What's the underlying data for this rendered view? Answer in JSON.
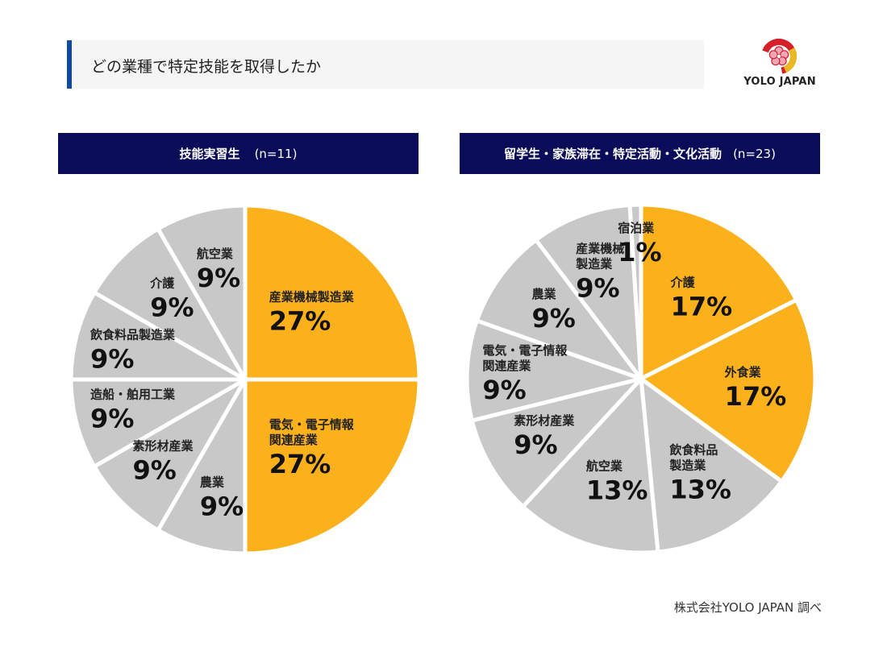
{
  "header": {
    "title": "どの業種で特定技能を取得したか"
  },
  "logo": {
    "text": "YOLO JAPAN"
  },
  "colors": {
    "highlight": "#fbb11c",
    "other": "#c8c8c8",
    "header_bg": "#0a0c5a",
    "accent": "#0e4aa3"
  },
  "chart_data": [
    {
      "type": "pie",
      "title": "技能実習生",
      "n_label": "(n=11)",
      "slices": [
        {
          "name": "産業機械製造業",
          "label_lines": [
            "産業機械製造業"
          ],
          "value_label": "27%",
          "value": 27,
          "highlight": true
        },
        {
          "name": "電気・電子情報関連産業",
          "label_lines": [
            "電気・電子情報",
            "関連産業"
          ],
          "value_label": "27%",
          "value": 27,
          "highlight": true
        },
        {
          "name": "農業",
          "label_lines": [
            "農業"
          ],
          "value_label": "9%",
          "value": 9,
          "highlight": false
        },
        {
          "name": "素形材産業",
          "label_lines": [
            "素形材産業"
          ],
          "value_label": "9%",
          "value": 9,
          "highlight": false
        },
        {
          "name": "造船・舶用工業",
          "label_lines": [
            "造船・舶用工業"
          ],
          "value_label": "9%",
          "value": 9,
          "highlight": false
        },
        {
          "name": "飲食料品製造業",
          "label_lines": [
            "飲食料品製造業"
          ],
          "value_label": "9%",
          "value": 9,
          "highlight": false
        },
        {
          "name": "介護",
          "label_lines": [
            "介護"
          ],
          "value_label": "9%",
          "value": 9,
          "highlight": false
        },
        {
          "name": "航空業",
          "label_lines": [
            "航空業"
          ],
          "value_label": "9%",
          "value": 9,
          "highlight": false
        }
      ]
    },
    {
      "type": "pie",
      "title": "留学生・家族滞在・特定活動・文化活動",
      "n_label": "(n=23)",
      "slices": [
        {
          "name": "介護",
          "label_lines": [
            "介護"
          ],
          "value_label": "17%",
          "value": 17,
          "highlight": true
        },
        {
          "name": "外食業",
          "label_lines": [
            "外食業"
          ],
          "value_label": "17%",
          "value": 17,
          "highlight": true
        },
        {
          "name": "飲食料品製造業",
          "label_lines": [
            "飲食料品",
            "製造業"
          ],
          "value_label": "13%",
          "value": 13,
          "highlight": false
        },
        {
          "name": "航空業",
          "label_lines": [
            "航空業"
          ],
          "value_label": "13%",
          "value": 13,
          "highlight": false
        },
        {
          "name": "素形材産業",
          "label_lines": [
            "素形材産業"
          ],
          "value_label": "9%",
          "value": 9,
          "highlight": false
        },
        {
          "name": "電気・電子情報関連産業",
          "label_lines": [
            "電気・電子情報",
            "関連産業"
          ],
          "value_label": "9%",
          "value": 9,
          "highlight": false
        },
        {
          "name": "農業",
          "label_lines": [
            "農業"
          ],
          "value_label": "9%",
          "value": 9,
          "highlight": false
        },
        {
          "name": "産業機械製造業",
          "label_lines": [
            "産業機械",
            "製造業"
          ],
          "value_label": "9%",
          "value": 9,
          "highlight": false
        },
        {
          "name": "宿泊業",
          "label_lines": [
            "宿泊業"
          ],
          "value_label": "1%",
          "value": 1,
          "highlight": false
        }
      ]
    }
  ],
  "footer": {
    "source": "株式会社YOLO JAPAN 調べ"
  }
}
